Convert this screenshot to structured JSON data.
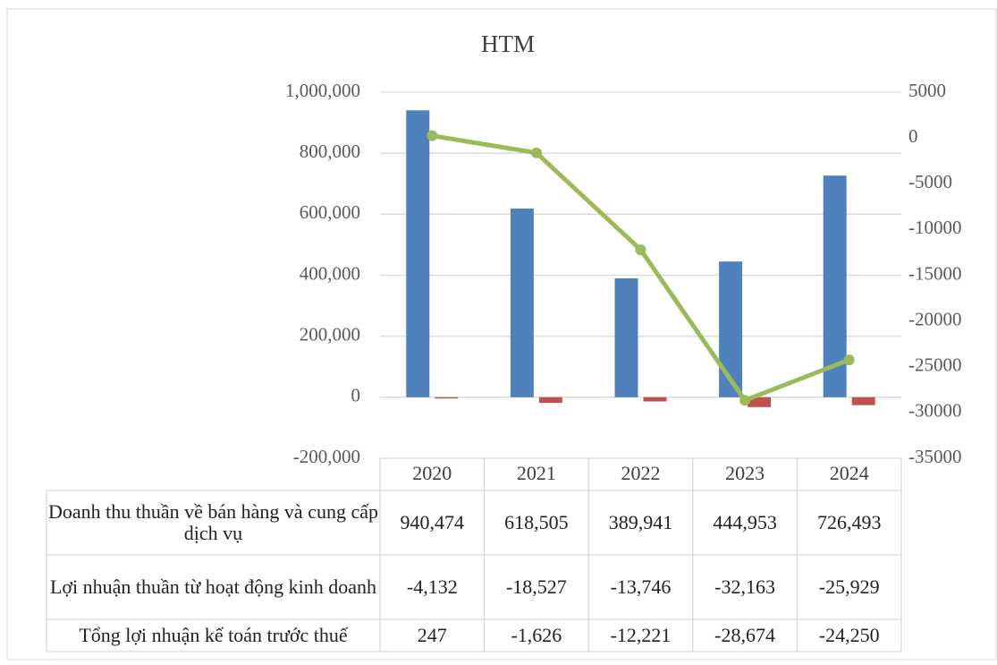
{
  "chart_data": {
    "type": "bar-line-table",
    "title": "HTM",
    "categories": [
      "2020",
      "2021",
      "2022",
      "2023",
      "2024"
    ],
    "series": [
      {
        "name": "Doanh thu thuần về bán hàng và cung cấp dịch vụ",
        "type": "bar",
        "color": "#4f81bd",
        "axis": "y",
        "values": [
          940474,
          618505,
          389941,
          444953,
          726493
        ],
        "value_labels": [
          "940,474",
          "618,505",
          "389,941",
          "444,953",
          "726,493"
        ]
      },
      {
        "name": "Lợi nhuận thuần từ hoạt động kinh doanh",
        "type": "bar",
        "color": "#c0504d",
        "axis": "y",
        "values": [
          -4132,
          -18527,
          -13746,
          -32163,
          -25929
        ],
        "value_labels": [
          "-4,132",
          "-18,527",
          "-13,746",
          "-32,163",
          "-25,929"
        ]
      },
      {
        "name": "Tổng lợi nhuận kế toán trước thuế",
        "type": "line",
        "color": "#9bbb59",
        "axis": "y2",
        "values": [
          247,
          -1626,
          -12221,
          -28674,
          -24250
        ],
        "value_labels": [
          "247",
          "-1,626",
          "-12,221",
          "-28,674",
          "-24,250"
        ]
      }
    ],
    "ylim": [
      -200000,
      1000000
    ],
    "yticks": [
      {
        "value": -200000,
        "label": "-200,000"
      },
      0,
      {
        "value": 200000,
        "label": "200,000"
      },
      {
        "value": 400000,
        "label": "400,000"
      },
      {
        "value": 600000,
        "label": "600,000"
      },
      {
        "value": 800000,
        "label": "800,000"
      },
      {
        "value": 1000000,
        "label": "1,000,000"
      }
    ],
    "y2lim": [
      -35000,
      5000
    ],
    "y2ticks": [
      -35000,
      -30000,
      -25000,
      -20000,
      -15000,
      -10000,
      -5000,
      0,
      5000
    ],
    "grid": true
  }
}
